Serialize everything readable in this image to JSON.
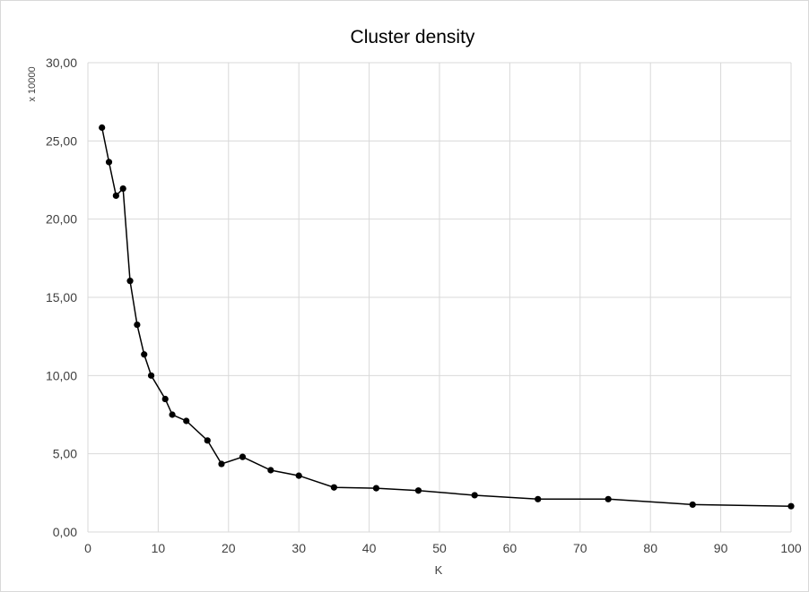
{
  "chart_data": {
    "type": "line",
    "title": "Cluster density",
    "xlabel": "K",
    "ylabel": "",
    "y_unit_label": "x 10000",
    "xlim": [
      0,
      100
    ],
    "ylim": [
      0,
      30
    ],
    "x_ticks": [
      "0",
      "10",
      "20",
      "30",
      "40",
      "50",
      "60",
      "70",
      "80",
      "90",
      "100"
    ],
    "y_ticks": [
      "0,00",
      "5,00",
      "10,00",
      "15,00",
      "20,00",
      "25,00",
      "30,00"
    ],
    "grid": true,
    "series": [
      {
        "x": [
          2,
          3,
          4,
          5,
          6,
          7,
          8,
          9,
          11,
          12,
          14,
          17,
          19,
          22,
          26,
          30,
          35,
          41,
          47,
          55,
          64,
          74,
          86,
          100
        ],
        "y": [
          25.85,
          23.65,
          21.5,
          21.95,
          16.05,
          13.25,
          11.35,
          10.0,
          8.5,
          7.5,
          7.1,
          5.85,
          4.35,
          4.8,
          3.95,
          3.6,
          2.85,
          2.8,
          2.65,
          2.35,
          2.1,
          2.1,
          1.75,
          1.65
        ],
        "color": "#000000"
      }
    ]
  }
}
